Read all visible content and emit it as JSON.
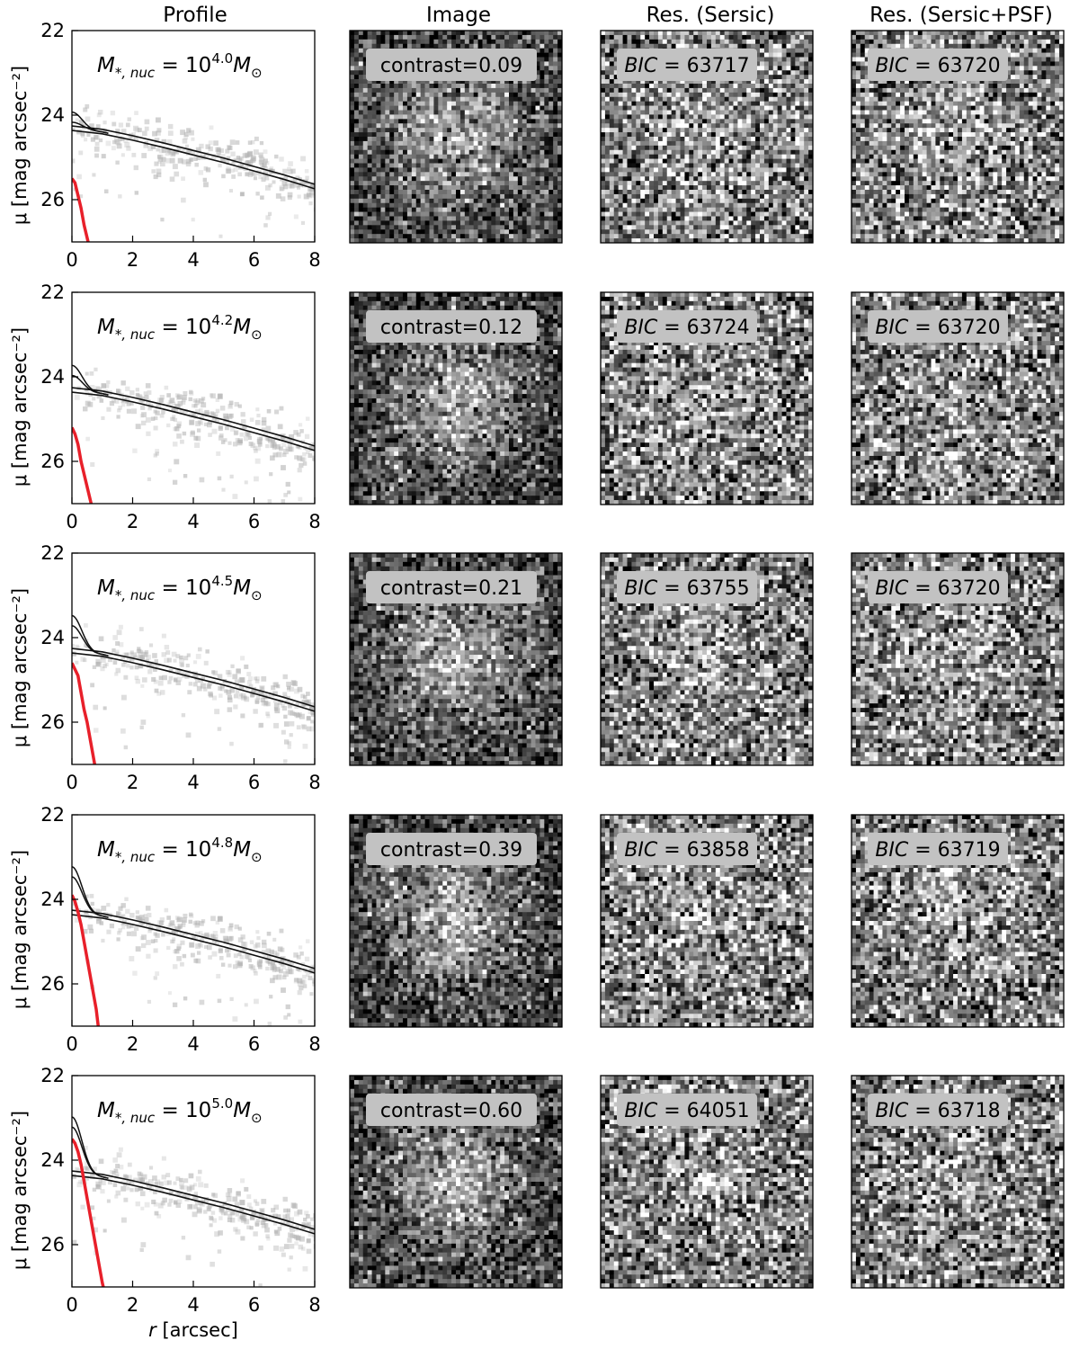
{
  "column_titles": {
    "profile": "Profile",
    "image": "Image",
    "res_sersic": "Res. (Sersic)",
    "res_sersic_psf": "Res. (Sersic+PSF)"
  },
  "axes_text": {
    "ylabel": "μ [mag arcsec⁻²]",
    "xlabel": "r [arcsec]",
    "mass_prefix": "M",
    "mass_sub": "*, nuc",
    "mass_base": " = 10",
    "mass_unit": "M",
    "mass_unit_sub": "⊙",
    "contrast_prefix": "contrast=",
    "bic_prefix": "BIC",
    "bic_eq": " = "
  },
  "colors": {
    "nucleus_profile": "#e8202a",
    "model_profile": "#111111",
    "data_points": "#b0b0b0",
    "label_box": "#c2c2c2"
  },
  "rows": [
    {
      "mass_exp": "4.0",
      "contrast": "0.09",
      "bic_sersic": "63717",
      "bic_sersic_psf": "63720"
    },
    {
      "mass_exp": "4.2",
      "contrast": "0.12",
      "bic_sersic": "63724",
      "bic_sersic_psf": "63720"
    },
    {
      "mass_exp": "4.5",
      "contrast": "0.21",
      "bic_sersic": "63755",
      "bic_sersic_psf": "63720"
    },
    {
      "mass_exp": "4.8",
      "contrast": "0.39",
      "bic_sersic": "63858",
      "bic_sersic_psf": "63719"
    },
    {
      "mass_exp": "5.0",
      "contrast": "0.60",
      "bic_sersic": "64051",
      "bic_sersic_psf": "63718"
    }
  ],
  "chart_data": {
    "type": "line",
    "panels": "5 rows × 4 columns (profile plot, image, residual Sersic, residual Sersic+PSF)",
    "xlabel": "r [arcsec]",
    "ylabel": "μ [mag arcsec⁻²]",
    "xlim": [
      0,
      8
    ],
    "ylim": [
      27,
      22
    ],
    "y_inverted": true,
    "xticks": [
      0,
      2,
      4,
      6,
      8
    ],
    "yticks": [
      22,
      24,
      26
    ],
    "grid": false,
    "sersic_profile": {
      "x": [
        0,
        1,
        2,
        3,
        4,
        5,
        6,
        7,
        8
      ],
      "y": [
        24.32,
        24.4,
        24.55,
        24.72,
        24.9,
        25.08,
        25.28,
        25.48,
        25.7
      ]
    },
    "total_profile_center": [
      24.05,
      23.85,
      23.6,
      23.35,
      23.1
    ],
    "nucleus_profiles": [
      {
        "x": [
          0,
          0.1,
          0.2,
          0.3,
          0.4,
          0.5,
          0.6
        ],
        "y": [
          25.5,
          25.6,
          25.9,
          26.2,
          26.6,
          26.9,
          27.2
        ]
      },
      {
        "x": [
          0,
          0.1,
          0.2,
          0.3,
          0.4,
          0.5,
          0.6,
          0.7
        ],
        "y": [
          25.2,
          25.35,
          25.6,
          26.0,
          26.3,
          26.6,
          26.9,
          27.2
        ]
      },
      {
        "x": [
          0,
          0.1,
          0.2,
          0.3,
          0.4,
          0.5,
          0.6,
          0.7,
          0.8
        ],
        "y": [
          24.6,
          24.75,
          24.9,
          25.3,
          25.7,
          26.0,
          26.4,
          26.8,
          27.2
        ]
      },
      {
        "x": [
          0,
          0.1,
          0.2,
          0.3,
          0.4,
          0.5,
          0.6,
          0.7,
          0.8,
          0.9
        ],
        "y": [
          23.9,
          24.05,
          24.3,
          24.6,
          25.0,
          25.4,
          25.8,
          26.2,
          26.6,
          27.2
        ]
      },
      {
        "x": [
          0,
          0.1,
          0.2,
          0.3,
          0.4,
          0.5,
          0.6,
          0.7,
          0.8,
          0.9,
          1.0,
          1.1
        ],
        "y": [
          23.5,
          23.6,
          23.8,
          24.1,
          24.5,
          24.9,
          25.3,
          25.7,
          26.1,
          26.5,
          26.9,
          27.2
        ]
      }
    ],
    "contrast": [
      0.09,
      0.12,
      0.21,
      0.39,
      0.6
    ],
    "bic_sersic": [
      63717,
      63724,
      63755,
      63858,
      64051
    ],
    "bic_sersic_psf": [
      63720,
      63720,
      63720,
      63719,
      63718
    ],
    "mass_log10_msun": [
      4.0,
      4.2,
      4.5,
      4.8,
      5.0
    ]
  }
}
